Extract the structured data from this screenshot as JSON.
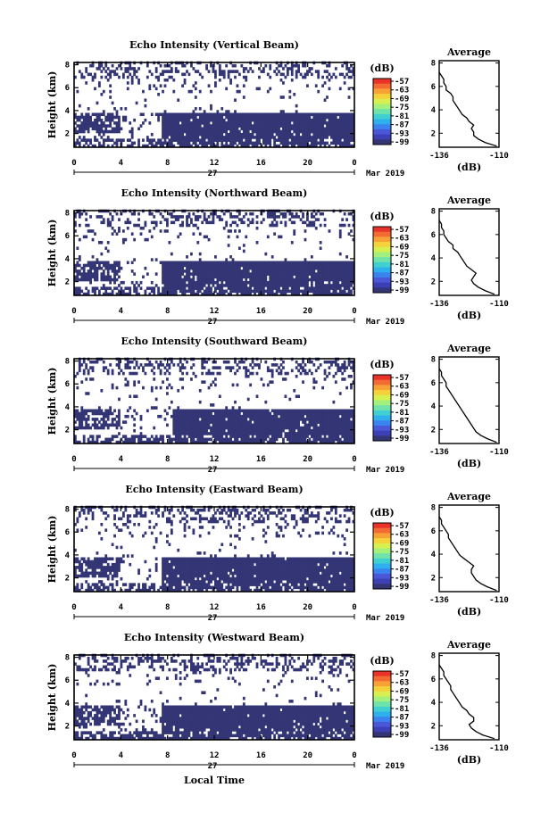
{
  "figure": {
    "xlabel_bottom": "Local Time",
    "date_label": "Mar 2019",
    "day_label": "27",
    "colorbar": {
      "unit": "(dB)",
      "ticks": [
        "-57",
        "-63",
        "-69",
        "-75",
        "-81",
        "-87",
        "-93",
        "-99"
      ],
      "colormap": [
        "#e8322a",
        "#f26b33",
        "#f6a236",
        "#f5d23a",
        "#d7ef4f",
        "#a3f07c",
        "#6fe3a9",
        "#3fd1d2",
        "#2fb0ee",
        "#3b84ef",
        "#4a58d8",
        "#3d3fb4",
        "#333575"
      ]
    },
    "colors": {
      "echo": "#333575",
      "profile": "#000000",
      "axis": "#000000"
    }
  },
  "chart_data": [
    {
      "type": "heatmap",
      "title": "Echo Intensity (Vertical Beam)",
      "ylabel": "Height (km)",
      "x_ticks": [
        "0",
        "4",
        "8",
        "12",
        "16",
        "20",
        "0"
      ],
      "x_range": [
        0,
        24
      ],
      "y_ticks": [
        "2",
        "4",
        "6",
        "8"
      ],
      "y_range": [
        0.8,
        8.2
      ],
      "value_range_db": [
        -99,
        -57
      ],
      "low_layer_top_km": 3.8,
      "low_layer_start_hr": 7.5,
      "dominant_value_db": -99,
      "average_profile": {
        "title": "Average",
        "xlabel": "(dB)",
        "x_ticks": [
          "-136",
          "-110"
        ],
        "x_range": [
          -136,
          -110
        ],
        "y_ticks": [
          "2",
          "4",
          "6",
          "8"
        ],
        "y_range": [
          0.8,
          8.2
        ],
        "heights_km": [
          0.9,
          1.2,
          1.5,
          1.8,
          2.1,
          2.4,
          2.7,
          3.0,
          3.3,
          3.6,
          3.9,
          4.2,
          4.5,
          4.8,
          5.1,
          5.4,
          5.7,
          6.0,
          6.3,
          6.6,
          6.9,
          7.2
        ],
        "values_db": [
          -111,
          -116,
          -119,
          -121,
          -121,
          -122,
          -121,
          -123,
          -124,
          -126,
          -127,
          -128,
          -129,
          -130,
          -130,
          -131,
          -133,
          -133,
          -134,
          -134,
          -135,
          -136
        ]
      }
    },
    {
      "type": "heatmap",
      "title": "Echo Intensity (Northward Beam)",
      "ylabel": "Height (km)",
      "x_ticks": [
        "0",
        "4",
        "8",
        "12",
        "16",
        "20",
        "0"
      ],
      "x_range": [
        0,
        24
      ],
      "y_ticks": [
        "2",
        "4",
        "6",
        "8"
      ],
      "y_range": [
        0.8,
        8.2
      ],
      "value_range_db": [
        -99,
        -57
      ],
      "low_layer_top_km": 3.9,
      "low_layer_start_hr": 7.5,
      "dominant_value_db": -99,
      "average_profile": {
        "title": "Average",
        "xlabel": "(dB)",
        "x_ticks": [
          "-136",
          "-110"
        ],
        "x_range": [
          -136,
          -110
        ],
        "y_ticks": [
          "2",
          "4",
          "6",
          "8"
        ],
        "y_range": [
          0.8,
          8.2
        ],
        "heights_km": [
          0.9,
          1.2,
          1.5,
          1.8,
          2.1,
          2.4,
          2.7,
          3.0,
          3.3,
          3.6,
          3.9,
          4.2,
          4.5,
          4.8,
          5.1,
          5.4,
          5.7,
          6.0,
          6.3,
          6.6,
          6.9,
          7.2
        ],
        "values_db": [
          -112,
          -116,
          -119,
          -121,
          -122,
          -121,
          -120,
          -122,
          -124,
          -125,
          -126,
          -127,
          -128,
          -130,
          -130,
          -132,
          -133,
          -134,
          -134,
          -135,
          -135,
          -136
        ]
      }
    },
    {
      "type": "heatmap",
      "title": "Echo Intensity (Southward Beam)",
      "ylabel": "Height (km)",
      "x_ticks": [
        "0",
        "4",
        "8",
        "12",
        "16",
        "20",
        "0"
      ],
      "x_range": [
        0,
        24
      ],
      "y_ticks": [
        "2",
        "4",
        "6",
        "8"
      ],
      "y_range": [
        0.8,
        8.2
      ],
      "value_range_db": [
        -99,
        -57
      ],
      "low_layer_top_km": 3.7,
      "low_layer_start_hr": 8.5,
      "dominant_value_db": -99,
      "average_profile": {
        "title": "Average",
        "xlabel": "(dB)",
        "x_ticks": [
          "-136",
          "-110"
        ],
        "x_range": [
          -136,
          -110
        ],
        "y_ticks": [
          "2",
          "4",
          "6",
          "8"
        ],
        "y_range": [
          0.8,
          8.2
        ],
        "heights_km": [
          0.9,
          1.2,
          1.5,
          1.8,
          2.1,
          2.4,
          2.7,
          3.0,
          3.3,
          3.6,
          3.9,
          4.2,
          4.5,
          4.8,
          5.1,
          5.4,
          5.7,
          6.0,
          6.3,
          6.6,
          6.9,
          7.2
        ],
        "values_db": [
          -111,
          -115,
          -118,
          -120,
          -121,
          -122,
          -123,
          -124,
          -125,
          -126,
          -127,
          -128,
          -129,
          -130,
          -131,
          -132,
          -133,
          -133,
          -134,
          -135,
          -135,
          -136
        ]
      }
    },
    {
      "type": "heatmap",
      "title": "Echo Intensity (Eastward Beam)",
      "ylabel": "Height (km)",
      "x_ticks": [
        "0",
        "4",
        "8",
        "12",
        "16",
        "20",
        "0"
      ],
      "x_range": [
        0,
        24
      ],
      "y_ticks": [
        "2",
        "4",
        "6",
        "8"
      ],
      "y_range": [
        0.8,
        8.2
      ],
      "value_range_db": [
        -99,
        -57
      ],
      "low_layer_top_km": 3.9,
      "low_layer_start_hr": 7.5,
      "dominant_value_db": -99,
      "average_profile": {
        "title": "Average",
        "xlabel": "(dB)",
        "x_ticks": [
          "-136",
          "-110"
        ],
        "x_range": [
          -136,
          -110
        ],
        "y_ticks": [
          "2",
          "4",
          "6",
          "8"
        ],
        "y_range": [
          0.8,
          8.2
        ],
        "heights_km": [
          0.9,
          1.2,
          1.5,
          1.8,
          2.1,
          2.4,
          2.7,
          3.0,
          3.3,
          3.6,
          3.9,
          4.2,
          4.5,
          4.8,
          5.1,
          5.4,
          5.7,
          6.0,
          6.3,
          6.6,
          6.9,
          7.2
        ],
        "values_db": [
          -111,
          -115,
          -118,
          -120,
          -121,
          -122,
          -122,
          -121,
          -123,
          -125,
          -127,
          -128,
          -129,
          -130,
          -131,
          -132,
          -132,
          -133,
          -134,
          -135,
          -135,
          -136
        ]
      }
    },
    {
      "type": "heatmap",
      "title": "Echo Intensity (Westward Beam)",
      "ylabel": "Height (km)",
      "x_ticks": [
        "0",
        "4",
        "8",
        "12",
        "16",
        "20",
        "0"
      ],
      "x_range": [
        0,
        24
      ],
      "y_ticks": [
        "2",
        "4",
        "6",
        "8"
      ],
      "y_range": [
        0.8,
        8.2
      ],
      "value_range_db": [
        -99,
        -57
      ],
      "low_layer_top_km": 3.8,
      "low_layer_start_hr": 7.5,
      "dominant_value_db": -99,
      "average_profile": {
        "title": "Average",
        "xlabel": "(dB)",
        "x_ticks": [
          "-136",
          "-110"
        ],
        "x_range": [
          -136,
          -110
        ],
        "y_ticks": [
          "2",
          "4",
          "6",
          "8"
        ],
        "y_range": [
          0.8,
          8.2
        ],
        "heights_km": [
          0.9,
          1.2,
          1.5,
          1.8,
          2.1,
          2.4,
          2.7,
          3.0,
          3.3,
          3.6,
          3.9,
          4.2,
          4.5,
          4.8,
          5.1,
          5.4,
          5.7,
          6.0,
          6.3,
          6.6,
          6.9,
          7.2
        ],
        "values_db": [
          -112,
          -117,
          -120,
          -122,
          -123,
          -121,
          -121,
          -123,
          -124,
          -126,
          -127,
          -128,
          -129,
          -130,
          -131,
          -131,
          -132,
          -133,
          -134,
          -134,
          -135,
          -136
        ]
      }
    }
  ]
}
